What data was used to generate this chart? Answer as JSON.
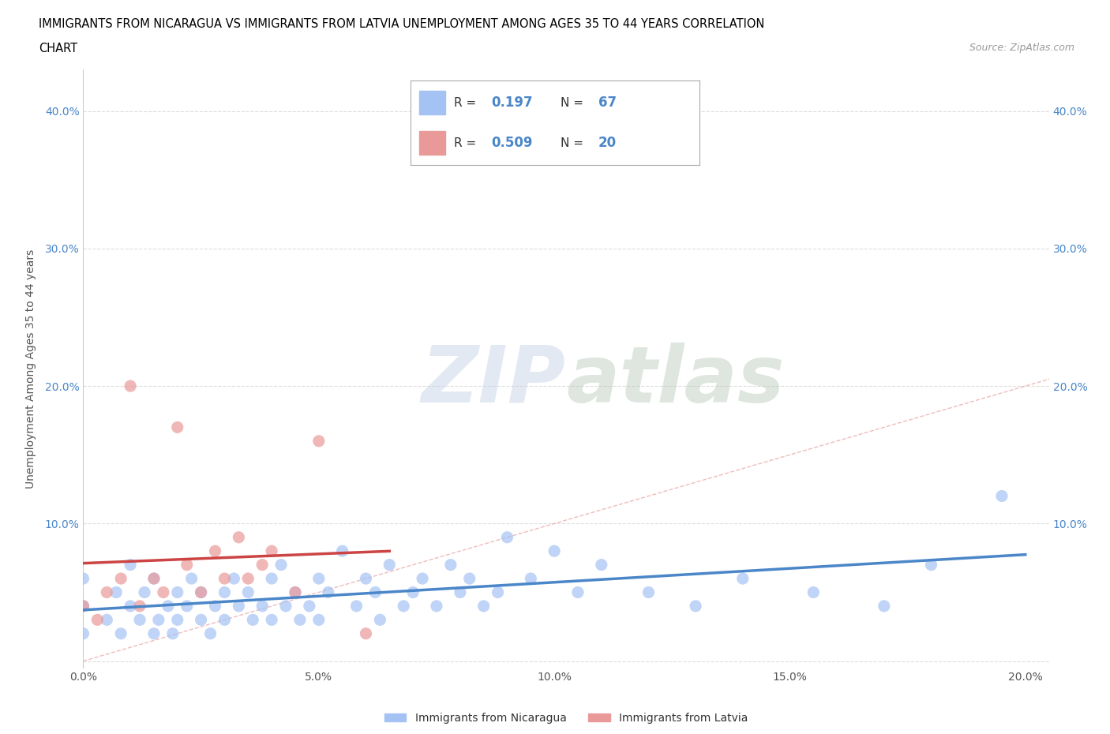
{
  "title_line1": "IMMIGRANTS FROM NICARAGUA VS IMMIGRANTS FROM LATVIA UNEMPLOYMENT AMONG AGES 35 TO 44 YEARS CORRELATION",
  "title_line2": "CHART",
  "source_text": "Source: ZipAtlas.com",
  "ylabel": "Unemployment Among Ages 35 to 44 years",
  "xlim": [
    0,
    0.205
  ],
  "ylim": [
    -0.005,
    0.43
  ],
  "xticks": [
    0.0,
    0.05,
    0.1,
    0.15,
    0.2
  ],
  "yticks": [
    0.0,
    0.1,
    0.2,
    0.3,
    0.4
  ],
  "nicaragua_color": "#a4c2f4",
  "nicaragua_color_line": "#4a86c8",
  "latvia_color": "#ea9999",
  "latvia_color_line": "#cc4444",
  "ref_line_color": "#e8a0a0",
  "watermark_color": "#d8e8f8",
  "watermark_color2": "#c8d8c8",
  "legend_R_nicaragua": "0.197",
  "legend_N_nicaragua": "67",
  "legend_R_latvia": "0.509",
  "legend_N_latvia": "20",
  "nicaragua_x": [
    0.0,
    0.0,
    0.0,
    0.005,
    0.007,
    0.008,
    0.01,
    0.01,
    0.012,
    0.013,
    0.015,
    0.015,
    0.016,
    0.018,
    0.019,
    0.02,
    0.02,
    0.022,
    0.023,
    0.025,
    0.025,
    0.027,
    0.028,
    0.03,
    0.03,
    0.032,
    0.033,
    0.035,
    0.036,
    0.038,
    0.04,
    0.04,
    0.042,
    0.043,
    0.045,
    0.046,
    0.048,
    0.05,
    0.05,
    0.052,
    0.055,
    0.058,
    0.06,
    0.062,
    0.063,
    0.065,
    0.068,
    0.07,
    0.072,
    0.075,
    0.078,
    0.08,
    0.082,
    0.085,
    0.088,
    0.09,
    0.095,
    0.1,
    0.105,
    0.11,
    0.12,
    0.13,
    0.14,
    0.155,
    0.17,
    0.18,
    0.195
  ],
  "nicaragua_y": [
    0.02,
    0.04,
    0.06,
    0.03,
    0.05,
    0.02,
    0.04,
    0.07,
    0.03,
    0.05,
    0.02,
    0.06,
    0.03,
    0.04,
    0.02,
    0.05,
    0.03,
    0.04,
    0.06,
    0.03,
    0.05,
    0.02,
    0.04,
    0.05,
    0.03,
    0.06,
    0.04,
    0.05,
    0.03,
    0.04,
    0.06,
    0.03,
    0.07,
    0.04,
    0.05,
    0.03,
    0.04,
    0.06,
    0.03,
    0.05,
    0.08,
    0.04,
    0.06,
    0.05,
    0.03,
    0.07,
    0.04,
    0.05,
    0.06,
    0.04,
    0.07,
    0.05,
    0.06,
    0.04,
    0.05,
    0.09,
    0.06,
    0.08,
    0.05,
    0.07,
    0.05,
    0.04,
    0.06,
    0.05,
    0.04,
    0.07,
    0.12
  ],
  "latvia_x": [
    0.0,
    0.003,
    0.005,
    0.008,
    0.01,
    0.012,
    0.015,
    0.017,
    0.02,
    0.022,
    0.025,
    0.028,
    0.03,
    0.033,
    0.035,
    0.038,
    0.04,
    0.045,
    0.05,
    0.06
  ],
  "latvia_y": [
    0.04,
    0.03,
    0.05,
    0.06,
    0.2,
    0.04,
    0.06,
    0.05,
    0.17,
    0.07,
    0.05,
    0.08,
    0.06,
    0.09,
    0.06,
    0.07,
    0.08,
    0.05,
    0.16,
    0.02
  ],
  "background_color": "#ffffff",
  "grid_color": "#dddddd"
}
